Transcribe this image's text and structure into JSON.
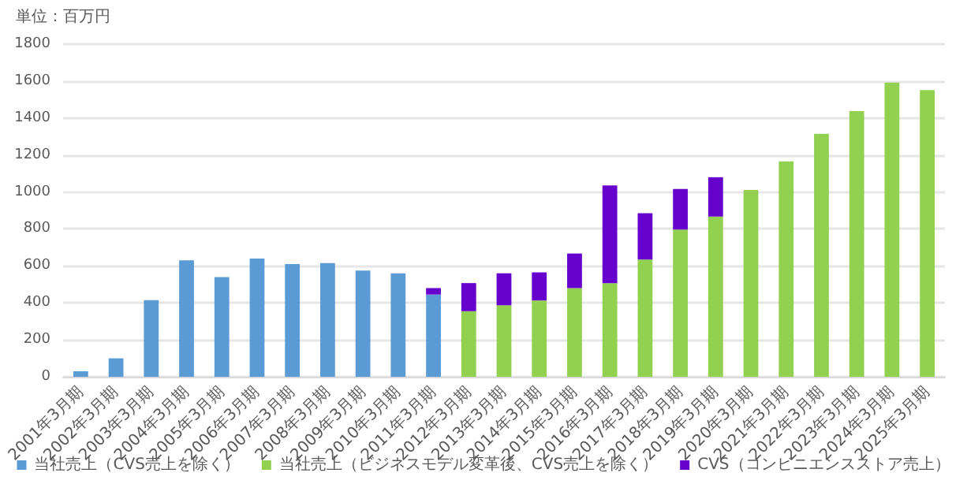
{
  "chart_data": {
    "type": "bar",
    "ylabel": "単位：百万円",
    "stacked": true,
    "grid": "y",
    "legend": "bottom",
    "categories": [
      "2001年3月期",
      "2002年3月期",
      "2003年3月期",
      "2004年3月期",
      "2005年3月期",
      "2006年3月期",
      "2007年3月期",
      "2008年3月期",
      "2009年3月期",
      "2010年3月期",
      "2011年3月期",
      "2012年3月期",
      "2013年3月期",
      "2014年3月期",
      "2015年3月期",
      "2016年3月期",
      "2017年3月期",
      "2018年3月期",
      "2019年3月期",
      "2020年3月期",
      "2021年3月期",
      "2022年3月期",
      "2023年3月期",
      "2024年3月期",
      "2025年3月期"
    ],
    "series": [
      {
        "name": "当社売上（CVS売上を除く）",
        "color": "#5b9bd5",
        "values": [
          30,
          100,
          415,
          630,
          540,
          640,
          610,
          615,
          575,
          560,
          445,
          null,
          null,
          null,
          null,
          null,
          null,
          null,
          null,
          null,
          null,
          null,
          null,
          null,
          null
        ]
      },
      {
        "name": "当社売上（ビジネスモデル変革後、CVS売上を除く）",
        "color": "#92d050",
        "values": [
          null,
          null,
          null,
          null,
          null,
          null,
          null,
          null,
          null,
          null,
          null,
          355,
          387,
          413,
          480,
          507,
          635,
          797,
          867,
          1011,
          1165,
          1315,
          1437,
          1592,
          1552
        ]
      },
      {
        "name": "CVS（コンビニエンスストア売上）",
        "color": "#6600cc",
        "values": [
          null,
          null,
          null,
          null,
          null,
          null,
          null,
          null,
          null,
          null,
          35,
          152,
          173,
          152,
          187,
          528,
          250,
          219,
          213,
          null,
          null,
          null,
          null,
          null,
          null
        ]
      }
    ],
    "ylim": [
      0,
      1800
    ],
    "yticks": [
      0,
      200,
      400,
      600,
      800,
      1000,
      1200,
      1400,
      1600,
      1800
    ]
  }
}
